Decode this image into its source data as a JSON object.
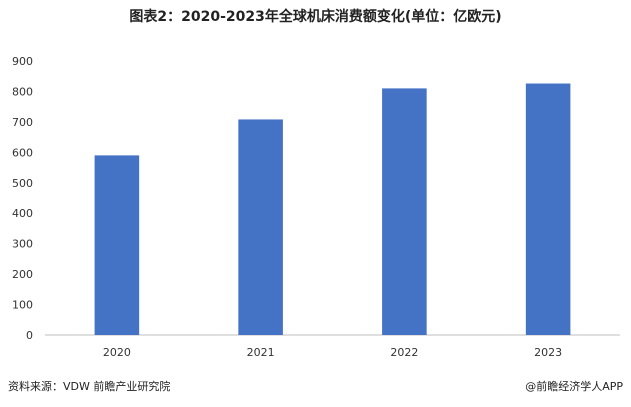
{
  "chart_data": {
    "type": "bar",
    "title": "图表2：2020-2023年全球机床消费额变化(单位：亿欧元)",
    "categories": [
      "2020",
      "2021",
      "2022",
      "2023"
    ],
    "values": [
      590,
      708,
      810,
      826
    ],
    "ylim": [
      0,
      900
    ],
    "yticks": [
      0,
      100,
      200,
      300,
      400,
      500,
      600,
      700,
      800,
      900
    ],
    "xlabel": "",
    "ylabel": "",
    "bar_color": "#4472C4",
    "grid": false,
    "legend": "none"
  },
  "footer": {
    "source": "资料来源：VDW 前瞻产业研究院",
    "brand": "@前瞻经济学人APP"
  }
}
